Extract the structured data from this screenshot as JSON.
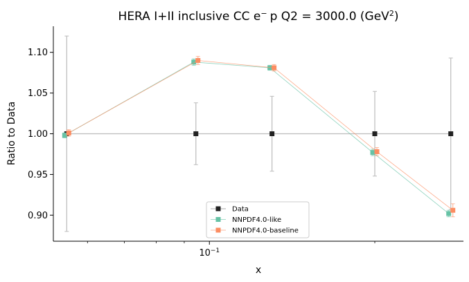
{
  "chart_data": {
    "type": "line",
    "title": {
      "main": "HERA I+II inclusive CC e",
      "sup1": "−",
      "mid": "p Q2 = 3000.0 (GeV",
      "sup2": "2",
      "end": ")"
    },
    "xlabel": "x",
    "ylabel": "Ratio to Data",
    "xscale": "log",
    "xlim": [
      0.052,
      0.29
    ],
    "ylim": [
      0.868,
      1.132
    ],
    "x_ticks": [
      {
        "value": 0.1,
        "base": "10",
        "exp": "−1"
      }
    ],
    "y_ticks": [
      0.9,
      0.95,
      1.0,
      1.05,
      1.1
    ],
    "grid": false,
    "legend_position": "lower-center",
    "x": [
      0.055,
      0.0945,
      0.13,
      0.2,
      0.275
    ],
    "series": [
      {
        "name": "Data",
        "color": "#222222",
        "marker": "square",
        "values": [
          1.0,
          1.0,
          1.0,
          1.0,
          1.0
        ],
        "errors": [
          0.12,
          0.038,
          0.046,
          0.052,
          0.093
        ],
        "x_offset": 0
      },
      {
        "name": "NNPDF4.0-like",
        "color": "#66c2a5",
        "marker": "square",
        "values": [
          0.998,
          1.088,
          1.081,
          0.977,
          0.902
        ],
        "errors": [
          0.003,
          0.004,
          0.003,
          0.004,
          0.004
        ],
        "x_offset": -3
      },
      {
        "name": "NNPDF4.0-baseline",
        "color": "#fc8d62",
        "marker": "square",
        "values": [
          1.001,
          1.09,
          1.081,
          0.978,
          0.906
        ],
        "errors": [
          0.004,
          0.005,
          0.004,
          0.005,
          0.008
        ],
        "x_offset": 3
      }
    ]
  }
}
